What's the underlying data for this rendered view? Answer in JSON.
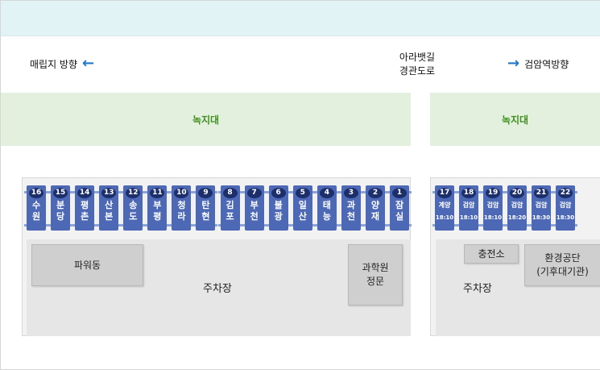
{
  "directions": {
    "left": "매립지 방향",
    "road_line1": "아라뱃길",
    "road_line2": "경관도로",
    "right": "검암역방향"
  },
  "green_zones": [
    "녹지대",
    "녹지대"
  ],
  "left_lot": {
    "stalls": [
      {
        "num": "16",
        "name": "수원"
      },
      {
        "num": "15",
        "name": "분당"
      },
      {
        "num": "14",
        "name": "평촌"
      },
      {
        "num": "13",
        "name": "산본"
      },
      {
        "num": "12",
        "name": "송도"
      },
      {
        "num": "11",
        "name": "부평"
      },
      {
        "num": "10",
        "name": "청라"
      },
      {
        "num": "9",
        "name": "탄현"
      },
      {
        "num": "8",
        "name": "김포"
      },
      {
        "num": "7",
        "name": "부천"
      },
      {
        "num": "6",
        "name": "불광"
      },
      {
        "num": "5",
        "name": "일산"
      },
      {
        "num": "4",
        "name": "태능"
      },
      {
        "num": "3",
        "name": "과천"
      },
      {
        "num": "2",
        "name": "양재"
      },
      {
        "num": "1",
        "name": "잠실"
      }
    ],
    "building1": "파워동",
    "building2_line1": "과학원",
    "building2_line2": "정문",
    "parking": "주차장"
  },
  "right_lot": {
    "stalls": [
      {
        "num": "17",
        "name": "계양",
        "time": "18:10"
      },
      {
        "num": "18",
        "name": "검암",
        "time": "18:10"
      },
      {
        "num": "19",
        "name": "검암",
        "time": "18:10"
      },
      {
        "num": "20",
        "name": "검암",
        "time": "18:20"
      },
      {
        "num": "21",
        "name": "검암",
        "time": "18:30"
      },
      {
        "num": "22",
        "name": "검암",
        "time": "18:30"
      }
    ],
    "charging": "충전소",
    "building_line1": "환경공단",
    "building_line2": "(기후대기관)",
    "parking": "주차장"
  },
  "colors": {
    "top_band": "#e1f3f5",
    "green_zone": "#e4f0de",
    "green_text": "#3f8f1d",
    "stall": "#4d69b6",
    "stall_number": "#1d2f6b",
    "arrow": "#1e77c8"
  },
  "icons": [
    "arrow-left-icon",
    "arrow-right-icon"
  ]
}
